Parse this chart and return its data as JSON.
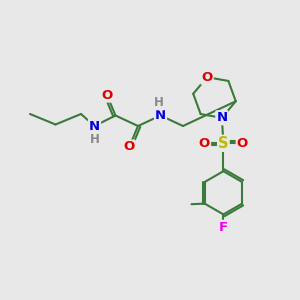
{
  "bg_color": "#e8e8e8",
  "bond_color": "#3a7a3a",
  "atom_colors": {
    "O": "#dd0000",
    "N": "#0000dd",
    "S": "#bbbb00",
    "F": "#ee00ee",
    "H": "#888888",
    "C": "#3a7a3a"
  },
  "bond_lw": 1.5,
  "font_size": 9.5,
  "title": ""
}
